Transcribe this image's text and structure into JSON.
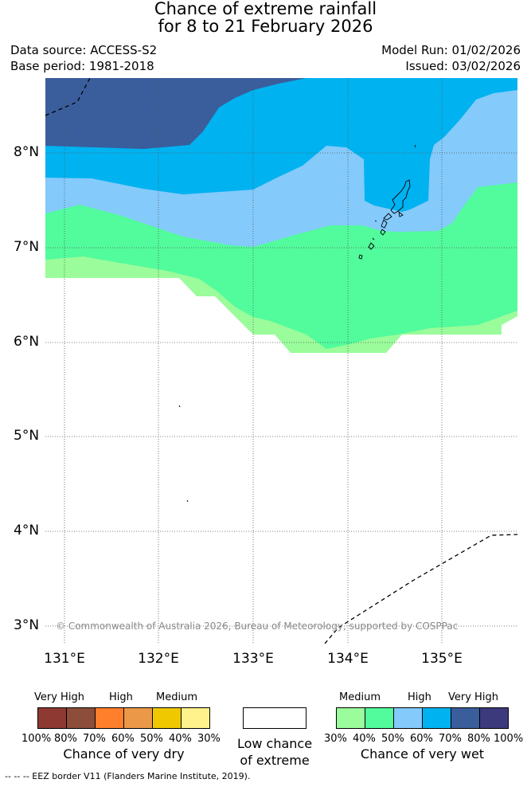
{
  "title": {
    "line1": "Chance of extreme rainfall",
    "line2": "for 8 to 21 February 2026"
  },
  "meta": {
    "data_source": "Data source: ACCESS-S2",
    "base_period": "Base period: 1981-2018",
    "model_run": "Model Run: 01/02/2026",
    "issued": "Issued: 03/02/2026"
  },
  "map": {
    "lat_labels": [
      "8°N",
      "7°N",
      "6°N",
      "5°N",
      "4°N",
      "3°N"
    ],
    "lon_labels": [
      "131°E",
      "132°E",
      "133°E",
      "134°E",
      "135°E"
    ],
    "lat_values": [
      8,
      7,
      6,
      5,
      4,
      3
    ],
    "lon_values": [
      131,
      132,
      133,
      134,
      135
    ],
    "copyright": "© Commonwealth of Australia 2026, Bureau of Meteorology, supported by COSPPac",
    "colors": {
      "wet_30": "#9afc9a",
      "wet_40": "#52fb9c",
      "wet_50": "#84cafb",
      "wet_60": "#00b2f0",
      "wet_70": "#3a5d9c",
      "wet_80": "#3c3a7c"
    }
  },
  "legend": {
    "dry": {
      "categories": [
        "Very High",
        "High",
        "Medium"
      ],
      "colors": [
        "#8e3a32",
        "#8c4d3a",
        "#ff7f2a",
        "#eb9948",
        "#f0c800",
        "#fff18c"
      ],
      "ticks": [
        "100%",
        "80%",
        "70%",
        "60%",
        "50%",
        "40%",
        "30%"
      ],
      "caption": "Chance of very dry"
    },
    "neutral": {
      "color": "#ffffff",
      "caption_line1": "Low chance",
      "caption_line2": "of extreme"
    },
    "wet": {
      "categories": [
        "Medium",
        "High",
        "Very High"
      ],
      "colors": [
        "#9afc9a",
        "#52fb9c",
        "#84cafb",
        "#00b2f0",
        "#3a5d9c",
        "#3c3a7c"
      ],
      "ticks": [
        "30%",
        "40%",
        "50%",
        "60%",
        "70%",
        "80%",
        "100%"
      ],
      "caption": "Chance of very wet"
    }
  },
  "footer": {
    "eez_note": "--  --  -- EEZ border V11 (Flanders Marine Institute, 2019)."
  }
}
